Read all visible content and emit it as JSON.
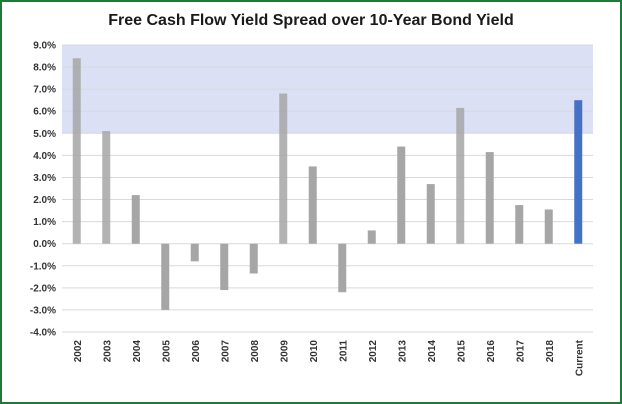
{
  "chart_data": {
    "type": "bar",
    "title": "Free Cash Flow Yield Spread over 10-Year Bond Yield",
    "xlabel": "",
    "ylabel": "",
    "categories": [
      "2002",
      "2003",
      "2004",
      "2005",
      "2006",
      "2007",
      "2008",
      "2009",
      "2010",
      "2011",
      "2012",
      "2013",
      "2014",
      "2015",
      "2016",
      "2017",
      "2018",
      "Current"
    ],
    "series": [
      {
        "values": [
          8.4,
          5.1,
          2.2,
          -3.0,
          -0.8,
          -2.1,
          -1.35,
          6.8,
          3.5,
          -2.2,
          0.6,
          4.4,
          2.7,
          6.15,
          4.15,
          1.75,
          1.55,
          6.5
        ]
      }
    ],
    "ylim": [
      -4.0,
      9.0
    ],
    "yticks": [
      "9.0%",
      "8.0%",
      "7.0%",
      "6.0%",
      "5.0%",
      "4.0%",
      "3.0%",
      "2.0%",
      "1.0%",
      "0.0%",
      "-1.0%",
      "-2.0%",
      "-3.0%",
      "-4.0%"
    ],
    "grid": true,
    "highlight_band": [
      5.0,
      9.0
    ],
    "colors": {
      "bar": "#a6a6a6",
      "current_bar": "#4472c4",
      "band": "#dbe0f4",
      "grid": "#d9d9d9"
    }
  }
}
